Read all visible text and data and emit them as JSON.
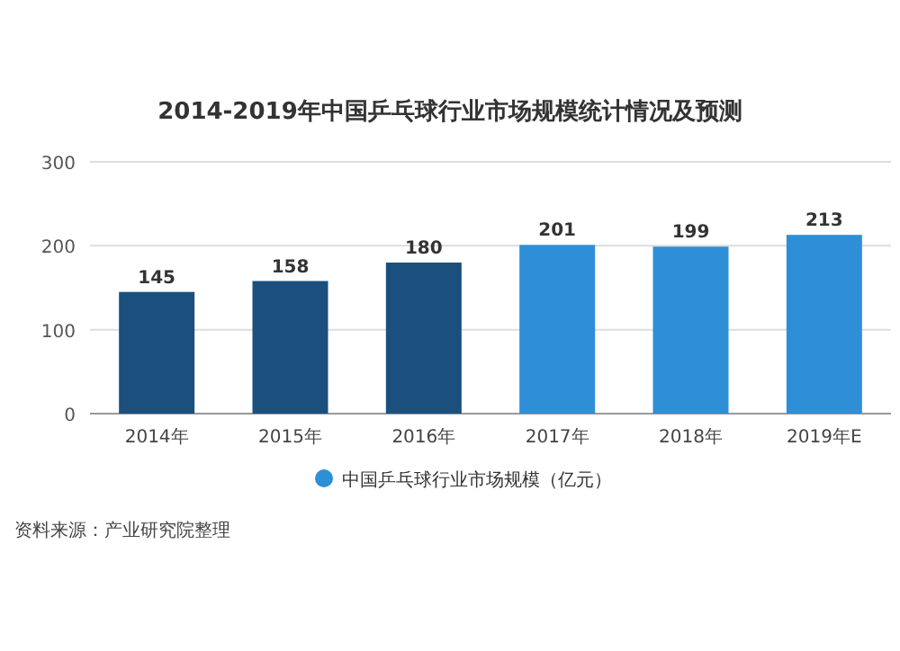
{
  "chart_data": {
    "type": "bar",
    "title": "2014-2019年中国乒乓球行业市场规模统计情况及预测",
    "categories": [
      "2014年",
      "2015年",
      "2016年",
      "2017年",
      "2018年",
      "2019年E"
    ],
    "series": [
      {
        "name": "中国乒乓球行业市场规模（亿元）",
        "colors": [
          "#1b4f7e",
          "#1b4f7e",
          "#1b4f7e",
          "#2e8fd6",
          "#2e8fd6",
          "#2e8fd6"
        ],
        "values": [
          145,
          158,
          180,
          201,
          199,
          213
        ]
      }
    ],
    "ylim": [
      0,
      300
    ],
    "yticks": [
      0,
      100,
      200,
      300
    ],
    "grid": "y",
    "legend": "bottom",
    "data_labels": true,
    "annotations": [
      "资料来源：产业研究院整理"
    ]
  }
}
